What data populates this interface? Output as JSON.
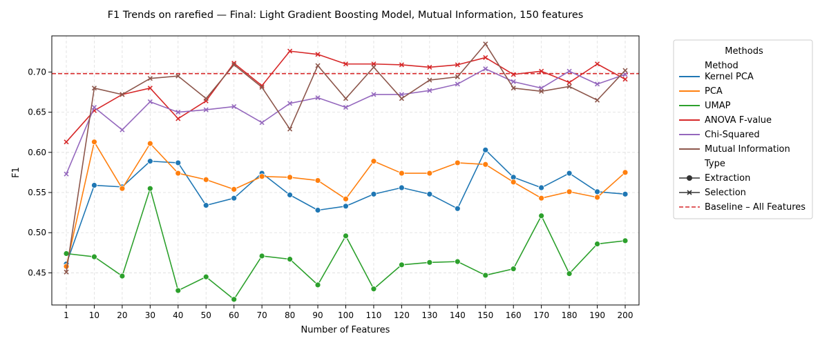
{
  "chart_data": {
    "type": "line",
    "title": "F1 Trends on rarefied — Final: Light Gradient Boosting Model, Mutual Information, 150 features",
    "xlabel": "Number of Features",
    "ylabel": "F1",
    "categories": [
      "1",
      "10",
      "20",
      "30",
      "40",
      "50",
      "60",
      "70",
      "80",
      "90",
      "100",
      "110",
      "120",
      "130",
      "140",
      "150",
      "160",
      "170",
      "180",
      "190",
      "200"
    ],
    "ylim": [
      0.41,
      0.745
    ],
    "yticks": [
      0.45,
      0.5,
      0.55,
      0.6,
      0.65,
      0.7
    ],
    "ytick_labels": [
      "0.45",
      "0.50",
      "0.55",
      "0.60",
      "0.65",
      "0.70"
    ],
    "grid": true,
    "legend_position": "outside-right",
    "legend": {
      "title": "Methods",
      "method_header": "Method",
      "type_header": "Type",
      "type_entries": [
        {
          "label": "Extraction",
          "marker": "circle"
        },
        {
          "label": "Selection",
          "marker": "x"
        }
      ]
    },
    "baseline": {
      "label": "Baseline – All Features",
      "value": 0.698,
      "color": "#d62728"
    },
    "series": [
      {
        "name": "Kernel PCA",
        "type": "Extraction",
        "color": "#1f77b4",
        "values": [
          0.461,
          0.559,
          0.557,
          0.589,
          0.587,
          0.534,
          0.543,
          0.574,
          0.547,
          0.528,
          0.533,
          0.548,
          0.556,
          0.548,
          0.53,
          0.603,
          0.569,
          0.556,
          0.574,
          0.551,
          0.548
        ]
      },
      {
        "name": "PCA",
        "type": "Extraction",
        "color": "#ff7f0e",
        "values": [
          0.458,
          0.613,
          0.555,
          0.611,
          0.574,
          0.566,
          0.554,
          0.57,
          0.569,
          0.565,
          0.542,
          0.589,
          0.574,
          0.574,
          0.587,
          0.585,
          0.563,
          0.543,
          0.551,
          0.544,
          0.575
        ]
      },
      {
        "name": "UMAP",
        "type": "Extraction",
        "color": "#2ca02c",
        "values": [
          0.474,
          0.47,
          0.446,
          0.555,
          0.428,
          0.445,
          0.417,
          0.471,
          0.467,
          0.435,
          0.496,
          0.43,
          0.46,
          0.463,
          0.464,
          0.447,
          0.455,
          0.521,
          0.449,
          0.486,
          0.49
        ]
      },
      {
        "name": "ANOVA F-value",
        "type": "Selection",
        "color": "#d62728",
        "values": [
          0.613,
          0.652,
          0.672,
          0.68,
          0.642,
          0.664,
          0.711,
          0.683,
          0.726,
          0.722,
          0.71,
          0.71,
          0.709,
          0.706,
          0.709,
          0.718,
          0.697,
          0.701,
          0.687,
          0.71,
          0.691
        ]
      },
      {
        "name": "Chi-Squared",
        "type": "Selection",
        "color": "#9467bd",
        "values": [
          0.573,
          0.656,
          0.628,
          0.663,
          0.65,
          0.653,
          0.657,
          0.637,
          0.661,
          0.668,
          0.656,
          0.672,
          0.672,
          0.677,
          0.685,
          0.704,
          0.688,
          0.68,
          0.701,
          0.685,
          0.697
        ]
      },
      {
        "name": "Mutual Information",
        "type": "Selection",
        "color": "#8c564b",
        "values": [
          0.451,
          0.68,
          0.672,
          0.692,
          0.695,
          0.667,
          0.709,
          0.681,
          0.629,
          0.708,
          0.667,
          0.706,
          0.667,
          0.69,
          0.694,
          0.735,
          0.68,
          0.676,
          0.682,
          0.665,
          0.702
        ]
      }
    ]
  }
}
